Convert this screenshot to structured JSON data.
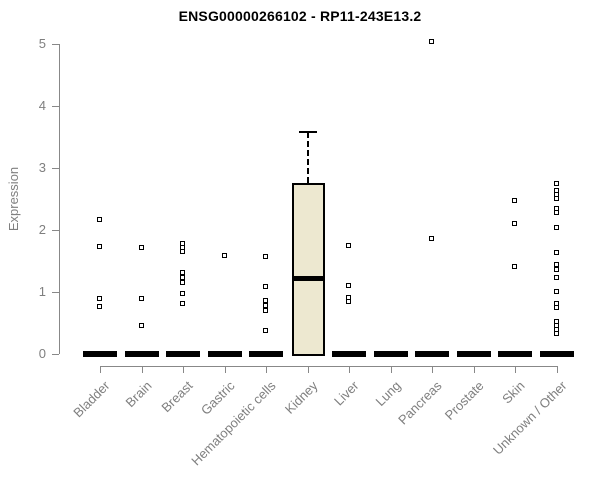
{
  "chart_data": {
    "type": "boxplot",
    "title": "ENSG00000266102 - RP11-243E13.2",
    "ylabel": "Expression",
    "xlabel": "",
    "ylim": [
      0,
      5
    ],
    "yticks": [
      0,
      1,
      2,
      3,
      4,
      5
    ],
    "grid": false,
    "legend": "none",
    "categories": [
      "Bladder",
      "Brain",
      "Breast",
      "Gastric",
      "Hematopoietic cells",
      "Kidney",
      "Liver",
      "Lung",
      "Pancreas",
      "Prostate",
      "Skin",
      "Unknown / Other"
    ],
    "boxes": [
      {
        "category": "Bladder",
        "q1": 0,
        "median": 0,
        "q3": 0,
        "whisker_low": 0,
        "whisker_high": 0,
        "outliers": [
          2.16,
          1.73,
          0.89,
          0.76
        ]
      },
      {
        "category": "Brain",
        "q1": 0,
        "median": 0,
        "q3": 0,
        "whisker_low": 0,
        "whisker_high": 0,
        "outliers": [
          1.71,
          0.89,
          0.45
        ]
      },
      {
        "category": "Breast",
        "q1": 0,
        "median": 0,
        "q3": 0,
        "whisker_low": 0,
        "whisker_high": 0,
        "outliers": [
          1.78,
          1.71,
          1.64,
          1.31,
          1.23,
          1.15,
          0.97,
          0.8
        ]
      },
      {
        "category": "Gastric",
        "q1": 0,
        "median": 0,
        "q3": 0,
        "whisker_low": 0,
        "whisker_high": 0,
        "outliers": [
          1.58
        ]
      },
      {
        "category": "Hematopoietic cells",
        "q1": 0,
        "median": 0,
        "q3": 0,
        "whisker_low": 0,
        "whisker_high": 0,
        "outliers": [
          1.56,
          1.08,
          0.85,
          0.77,
          0.69,
          0.37
        ]
      },
      {
        "category": "Kidney",
        "q1": 0,
        "median": 1.23,
        "q3": 2.76,
        "whisker_low": 0,
        "whisker_high": 3.58,
        "outliers": []
      },
      {
        "category": "Liver",
        "q1": 0,
        "median": 0,
        "q3": 0,
        "whisker_low": 0,
        "whisker_high": 0,
        "outliers": [
          1.74,
          1.1,
          0.9,
          0.84
        ]
      },
      {
        "category": "Lung",
        "q1": 0,
        "median": 0,
        "q3": 0,
        "whisker_low": 0,
        "whisker_high": 0,
        "outliers": []
      },
      {
        "category": "Pancreas",
        "q1": 0,
        "median": 0,
        "q3": 0,
        "whisker_low": 0,
        "whisker_high": 0,
        "outliers": [
          5.03,
          1.85
        ]
      },
      {
        "category": "Prostate",
        "q1": 0,
        "median": 0,
        "q3": 0,
        "whisker_low": 0,
        "whisker_high": 0,
        "outliers": []
      },
      {
        "category": "Skin",
        "q1": 0,
        "median": 0,
        "q3": 0,
        "whisker_low": 0,
        "whisker_high": 0,
        "outliers": [
          2.47,
          2.1,
          1.4
        ]
      },
      {
        "category": "Unknown / Other",
        "q1": 0,
        "median": 0,
        "q3": 0,
        "whisker_low": 0,
        "whisker_high": 0,
        "outliers": [
          2.74,
          2.63,
          2.56,
          2.5,
          2.34,
          2.27,
          2.03,
          1.63,
          1.43,
          1.35,
          1.22,
          1.0,
          0.8,
          0.74,
          0.52,
          0.45,
          0.38,
          0.32
        ]
      }
    ],
    "colors": {
      "box_fill": "#EDE8D0",
      "box_border": "#000000",
      "median": "#000000",
      "point_border": "#000000",
      "axis": "#888888",
      "tick_label": "#7F7F7F",
      "title": "#000000"
    }
  }
}
